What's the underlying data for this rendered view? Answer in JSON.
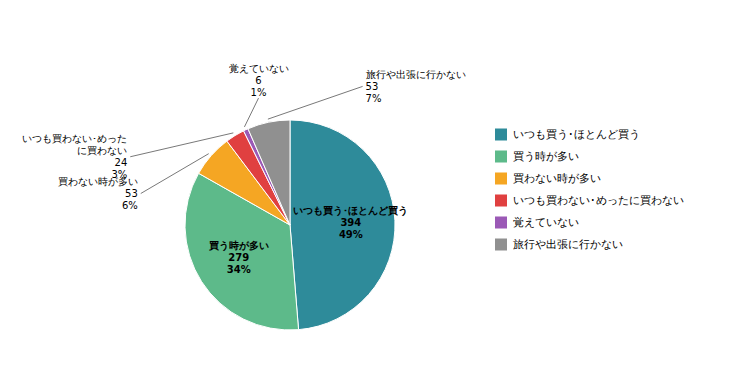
{
  "chart_data": {
    "type": "pie",
    "categories": [
      "いつも買う･ほとんど買う",
      "買う時が多い",
      "買わない時が多い",
      "いつも買わない･めったに買わない",
      "覚えていない",
      "旅行や出張に行かない"
    ],
    "values": [
      394,
      279,
      53,
      24,
      6,
      53
    ],
    "percentages": [
      49,
      34,
      6,
      3,
      1,
      7
    ],
    "percentage_labels": [
      "49%",
      "34%",
      "6%",
      "3%",
      "1%",
      "7%"
    ],
    "colors": [
      "#2e8b9a",
      "#5dba8a",
      "#f5a623",
      "#e04040",
      "#9b59b6",
      "#909090"
    ],
    "data_labels": true,
    "legend": "right"
  }
}
